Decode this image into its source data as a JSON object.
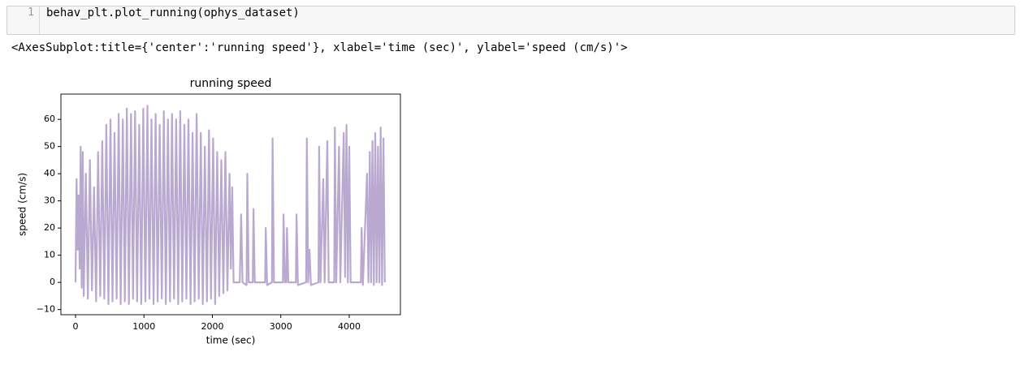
{
  "cell": {
    "line_number": "1",
    "code": "behav_plt.plot_running(ophys_dataset)"
  },
  "output": "<AxesSubplot:title={'center':'running speed'}, xlabel='time (sec)', ylabel='speed (cm/s)'>",
  "chart_data": {
    "type": "line",
    "title": "running speed",
    "x_label": "time (sec)",
    "y_label": "speed (cm/s)",
    "color": "#b9a9d0",
    "x": [
      0,
      15,
      30,
      45,
      60,
      75,
      90,
      105,
      120,
      150,
      180,
      210,
      240,
      270,
      300,
      330,
      360,
      390,
      420,
      450,
      480,
      510,
      540,
      570,
      600,
      630,
      660,
      690,
      720,
      750,
      780,
      810,
      840,
      870,
      900,
      930,
      960,
      990,
      1020,
      1050,
      1080,
      1110,
      1140,
      1170,
      1200,
      1230,
      1260,
      1290,
      1320,
      1350,
      1380,
      1410,
      1440,
      1470,
      1500,
      1530,
      1560,
      1590,
      1620,
      1650,
      1680,
      1710,
      1740,
      1770,
      1800,
      1830,
      1860,
      1890,
      1920,
      1950,
      1980,
      2010,
      2040,
      2070,
      2100,
      2130,
      2160,
      2190,
      2220,
      2250,
      2270,
      2290,
      2310,
      2400,
      2420,
      2440,
      2500,
      2510,
      2530,
      2590,
      2600,
      2620,
      2770,
      2780,
      2800,
      2870,
      2880,
      2900,
      3030,
      3040,
      3060,
      3080,
      3090,
      3110,
      3220,
      3230,
      3250,
      3370,
      3380,
      3400,
      3420,
      3440,
      3550,
      3560,
      3580,
      3620,
      3640,
      3680,
      3700,
      3780,
      3790,
      3810,
      3850,
      3870,
      3920,
      3940,
      3960,
      3980,
      4000,
      4020,
      4170,
      4180,
      4200,
      4260,
      4280,
      4300,
      4320,
      4340,
      4360,
      4380,
      4400,
      4420,
      4440,
      4460,
      4480,
      4500,
      4520
    ],
    "values": [
      0,
      38,
      12,
      32,
      5,
      50,
      -2,
      48,
      -5,
      40,
      -6,
      45,
      -3,
      35,
      -7,
      48,
      -5,
      52,
      -6,
      58,
      -8,
      60,
      -7,
      55,
      -6,
      62,
      -8,
      60,
      -7,
      64,
      -8,
      62,
      -6,
      63,
      -7,
      58,
      -8,
      64,
      -7,
      65,
      -6,
      60,
      -8,
      62,
      -7,
      58,
      -6,
      63,
      -8,
      60,
      -7,
      62,
      -6,
      60,
      -8,
      63,
      -7,
      58,
      -6,
      60,
      -8,
      55,
      -7,
      62,
      -6,
      55,
      -8,
      50,
      -7,
      56,
      -6,
      53,
      -8,
      48,
      -5,
      45,
      -4,
      48,
      -3,
      40,
      5,
      35,
      0,
      0,
      25,
      0,
      -1,
      40,
      0,
      0,
      27,
      0,
      0,
      20,
      -1,
      0,
      53,
      0,
      0,
      25,
      0,
      0,
      20,
      0,
      0,
      25,
      -1,
      0,
      53,
      0,
      12,
      -1,
      0,
      50,
      0,
      38,
      0,
      52,
      0,
      0,
      57,
      0,
      50,
      0,
      55,
      2,
      58,
      0,
      50,
      0,
      0,
      20,
      -1,
      40,
      0,
      48,
      0,
      52,
      -1,
      55,
      0,
      50,
      0,
      57,
      -1,
      53,
      0
    ],
    "xlim": [
      -214,
      4748
    ],
    "ylim": [
      -11.9,
      69.3
    ],
    "xticks": [
      0,
      1000,
      2000,
      3000,
      4000
    ],
    "yticks": [
      {
        "value": -10,
        "label": "−10"
      },
      0,
      10,
      20,
      30,
      40,
      50,
      60
    ]
  }
}
